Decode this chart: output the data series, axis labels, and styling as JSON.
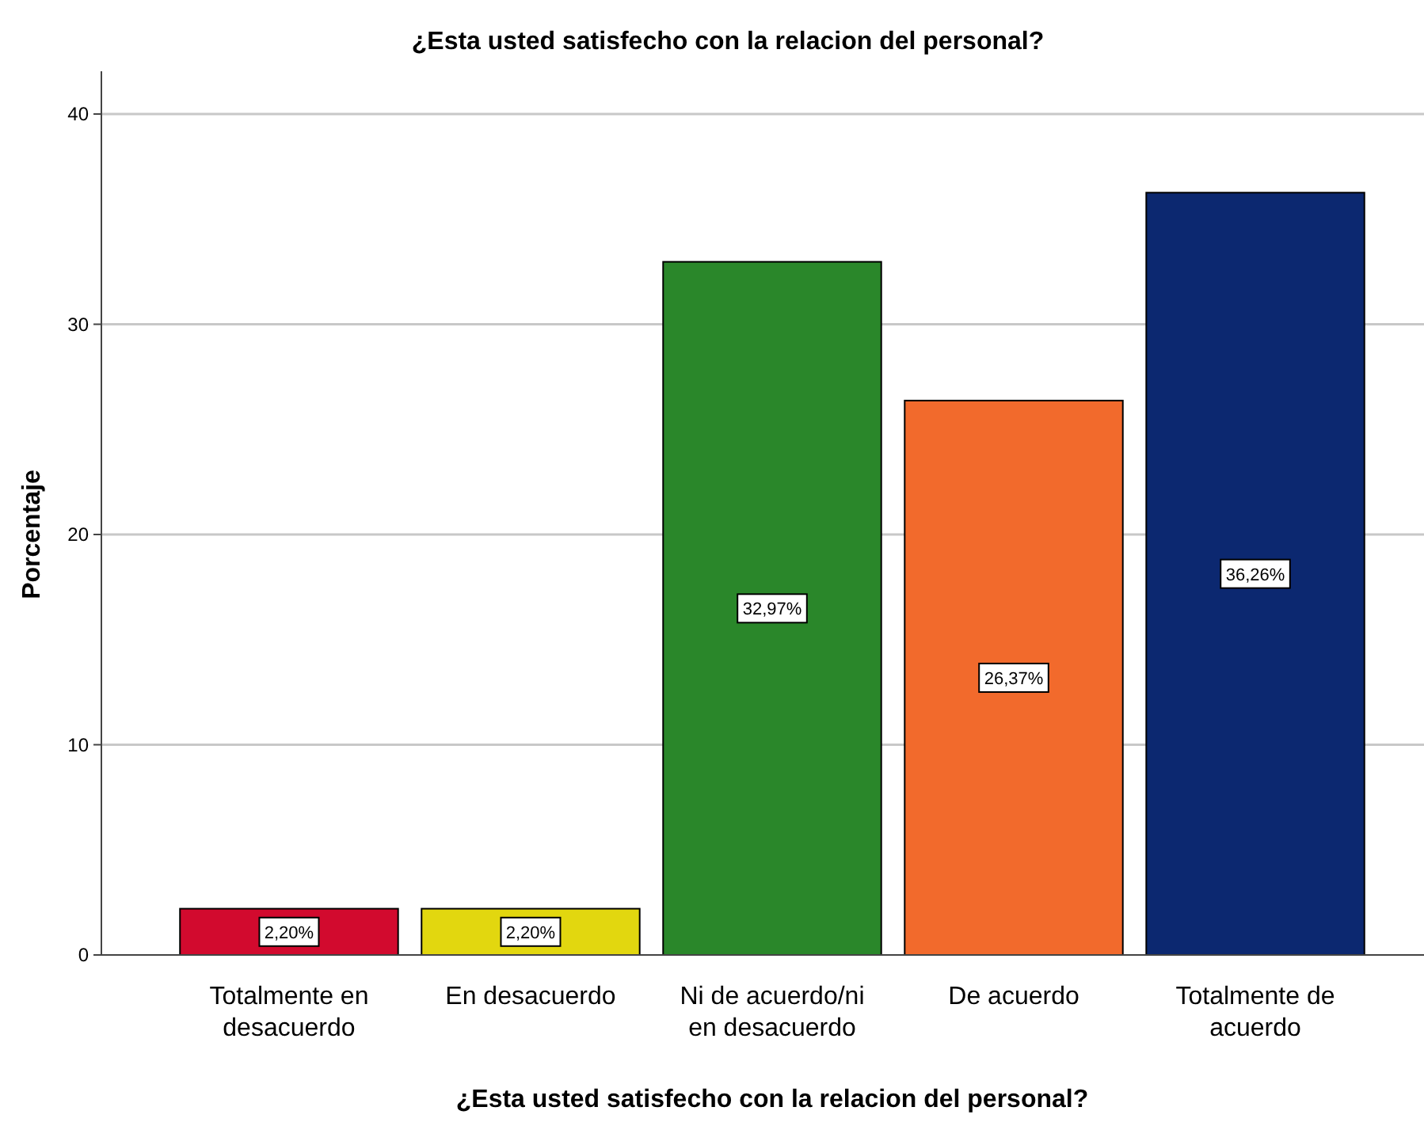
{
  "chart_data": {
    "type": "bar",
    "title": "¿Esta usted satisfecho con la relacion del personal?",
    "xlabel": "¿Esta usted satisfecho con la relacion del personal?",
    "ylabel": "Porcentaje",
    "categories": [
      "Totalmente en desacuerdo",
      "En desacuerdo",
      "Ni de acuerdo/ni en desacuerdo",
      "De acuerdo",
      "Totalmente de acuerdo"
    ],
    "values": [
      2.2,
      2.2,
      32.97,
      26.37,
      36.26
    ],
    "value_labels": [
      "2,20%",
      "2,20%",
      "32,97%",
      "26,37%",
      "36,26%"
    ],
    "colors": [
      "#d20a2e",
      "#e2d70f",
      "#2a872a",
      "#f26a2c",
      "#0c2870"
    ],
    "ylim": [
      0,
      40
    ],
    "yticks": [
      0,
      10,
      20,
      30,
      40
    ],
    "grid": "y"
  }
}
